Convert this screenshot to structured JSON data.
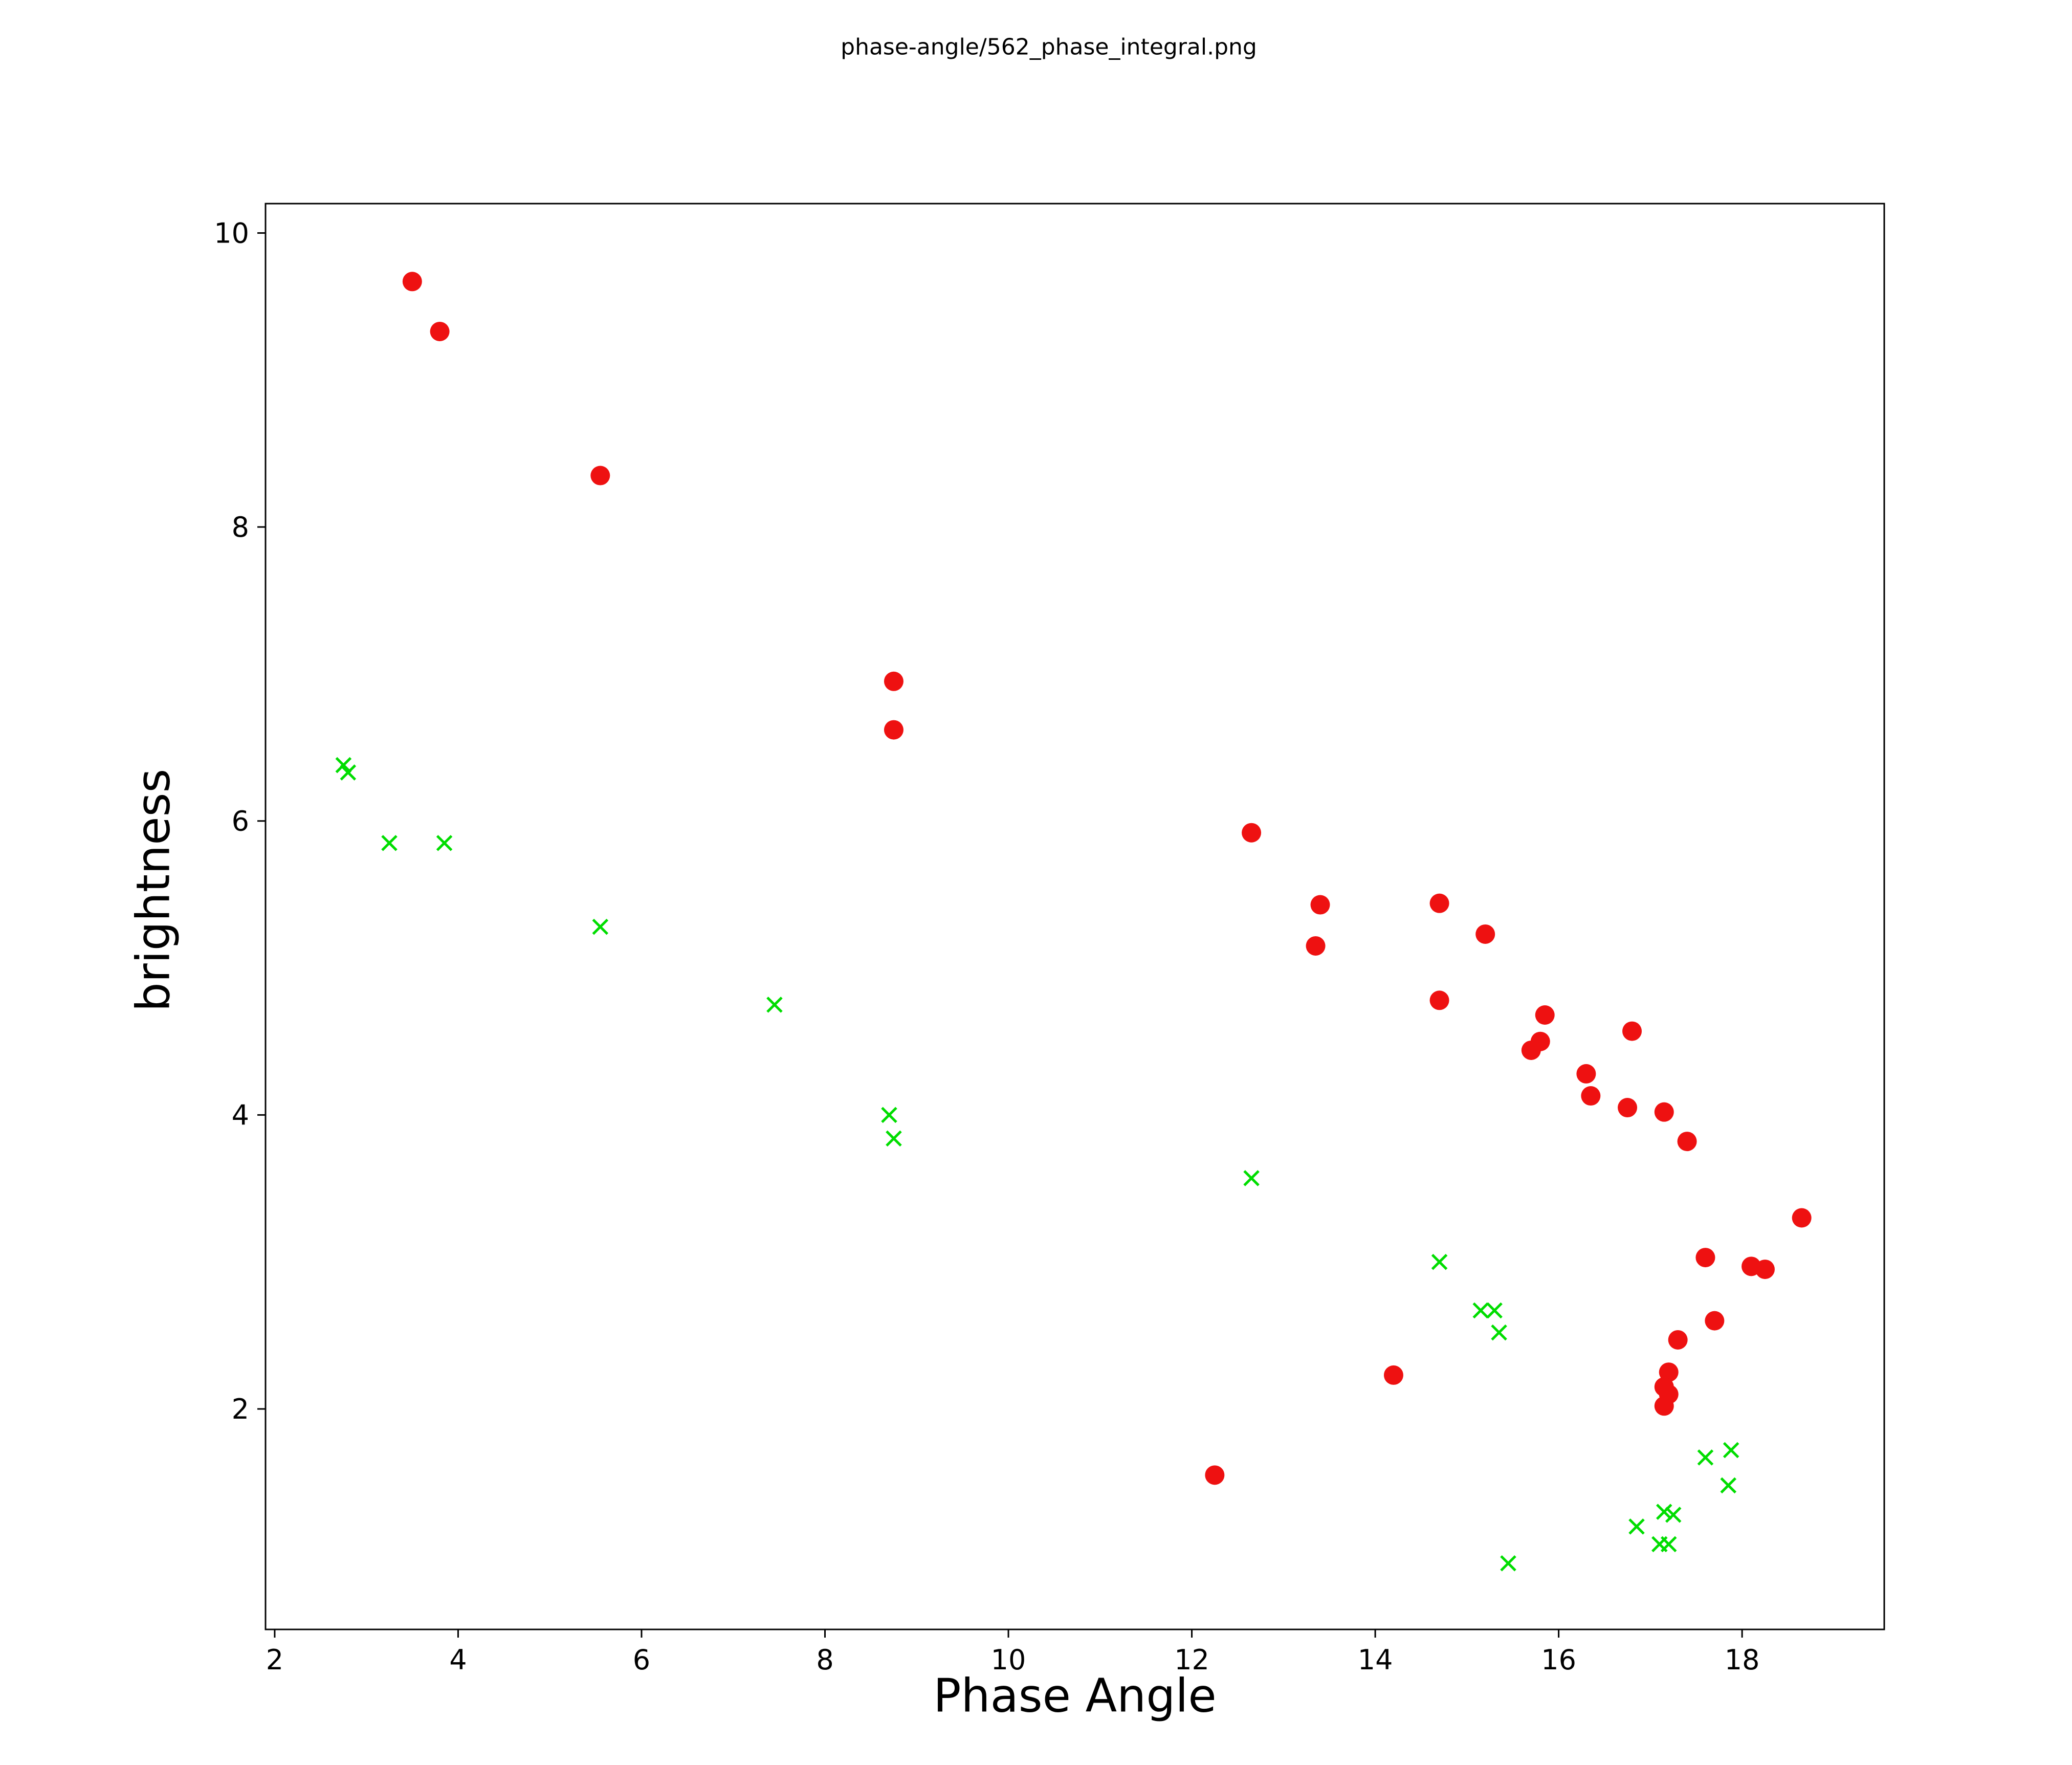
{
  "title": "phase-angle/562_phase_integral.png",
  "chart_data": {
    "type": "scatter",
    "title": "phase-angle/562_phase_integral.png",
    "xlabel": "Phase Angle",
    "ylabel": "brightness",
    "xlim": [
      1.9,
      19.55
    ],
    "ylim": [
      0.5,
      10.2
    ],
    "xticks": [
      2,
      4,
      6,
      8,
      10,
      12,
      14,
      16,
      18
    ],
    "yticks": [
      2,
      4,
      6,
      8,
      10
    ],
    "grid": false,
    "legend": "none",
    "series": [
      {
        "name": "red-circles",
        "marker": "circle",
        "color": "#ee1111",
        "points": [
          [
            3.5,
            9.67
          ],
          [
            3.8,
            9.33
          ],
          [
            5.55,
            8.35
          ],
          [
            8.75,
            6.95
          ],
          [
            8.75,
            6.62
          ],
          [
            12.65,
            5.92
          ],
          [
            13.4,
            5.43
          ],
          [
            13.35,
            5.15
          ],
          [
            14.7,
            5.44
          ],
          [
            15.2,
            5.23
          ],
          [
            14.7,
            4.78
          ],
          [
            15.85,
            4.68
          ],
          [
            15.7,
            4.44
          ],
          [
            15.8,
            4.5
          ],
          [
            16.3,
            4.28
          ],
          [
            16.35,
            4.13
          ],
          [
            16.8,
            4.57
          ],
          [
            16.75,
            4.05
          ],
          [
            17.15,
            4.02
          ],
          [
            17.4,
            3.82
          ],
          [
            18.65,
            3.3
          ],
          [
            17.6,
            3.03
          ],
          [
            18.1,
            2.97
          ],
          [
            18.25,
            2.95
          ],
          [
            17.7,
            2.6
          ],
          [
            17.3,
            2.47
          ],
          [
            17.2,
            2.25
          ],
          [
            17.15,
            2.15
          ],
          [
            17.2,
            2.1
          ],
          [
            17.15,
            2.02
          ],
          [
            14.2,
            2.23
          ],
          [
            12.25,
            1.55
          ]
        ]
      },
      {
        "name": "green-crosses",
        "marker": "x",
        "color": "#00dd00",
        "points": [
          [
            2.75,
            6.38
          ],
          [
            2.8,
            6.33
          ],
          [
            3.25,
            5.85
          ],
          [
            3.85,
            5.85
          ],
          [
            5.55,
            5.28
          ],
          [
            7.45,
            4.75
          ],
          [
            8.7,
            4.0
          ],
          [
            8.75,
            3.84
          ],
          [
            12.65,
            3.57
          ],
          [
            14.7,
            3.0
          ],
          [
            15.15,
            2.67
          ],
          [
            15.3,
            2.67
          ],
          [
            15.35,
            2.52
          ],
          [
            17.6,
            1.67
          ],
          [
            17.88,
            1.72
          ],
          [
            17.85,
            1.48
          ],
          [
            17.15,
            1.3
          ],
          [
            17.25,
            1.28
          ],
          [
            16.85,
            1.2
          ],
          [
            17.1,
            1.08
          ],
          [
            17.2,
            1.08
          ],
          [
            15.45,
            0.95
          ]
        ]
      }
    ]
  }
}
